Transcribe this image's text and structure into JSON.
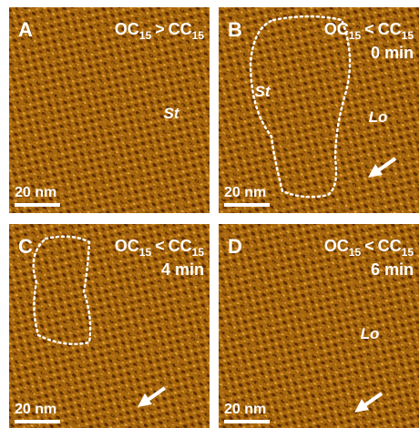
{
  "panels": [
    {
      "letter": "A",
      "condition": {
        "left": "OC",
        "left_sub": "15",
        "relation": ">",
        "right": "CC",
        "right_sub": "15"
      },
      "labels": [
        "St"
      ],
      "scale_bar": "20 nm"
    },
    {
      "letter": "B",
      "condition": {
        "left": "OC",
        "left_sub": "15",
        "relation": "<",
        "right": "CC",
        "right_sub": "15"
      },
      "time": "0 min",
      "labels": [
        "St",
        "Lo"
      ],
      "scale_bar": "20 nm"
    },
    {
      "letter": "C",
      "condition": {
        "left": "OC",
        "left_sub": "15",
        "relation": "<",
        "right": "CC",
        "right_sub": "15"
      },
      "time": "4 min",
      "scale_bar": "20 nm"
    },
    {
      "letter": "D",
      "condition": {
        "left": "OC",
        "left_sub": "15",
        "relation": "<",
        "right": "CC",
        "right_sub": "15"
      },
      "time": "6 min",
      "labels": [
        "Lo"
      ],
      "scale_bar": "20 nm"
    }
  ]
}
